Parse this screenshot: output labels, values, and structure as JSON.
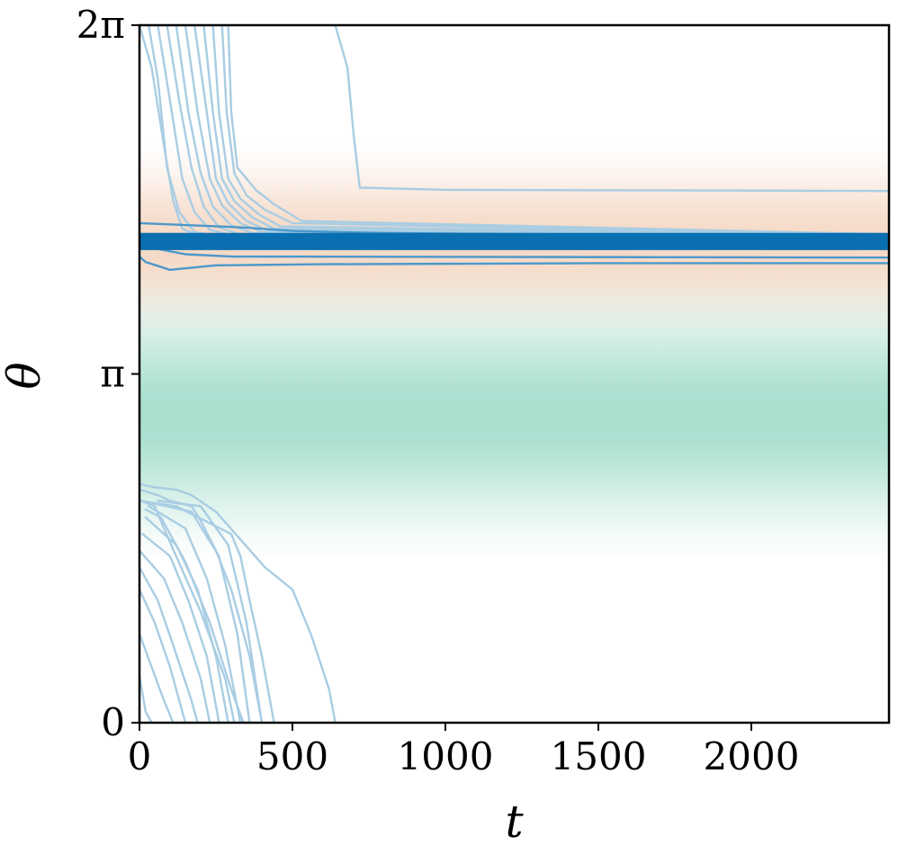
{
  "chart_data": {
    "type": "line",
    "title": "",
    "xlabel": "t",
    "ylabel": "θ",
    "xlim": [
      0,
      2450
    ],
    "ylim": [
      0,
      6.2832
    ],
    "grid": false,
    "legend": "none",
    "x_ticks": [
      {
        "value": 0,
        "label": "0"
      },
      {
        "value": 500,
        "label": "500"
      },
      {
        "value": 1000,
        "label": "1000"
      },
      {
        "value": 1500,
        "label": "1500"
      },
      {
        "value": 2000,
        "label": "2000"
      }
    ],
    "y_ticks": [
      {
        "value": 0,
        "label": "0"
      },
      {
        "value": 3.1416,
        "label": "π"
      },
      {
        "value": 6.2832,
        "label": "2π"
      }
    ],
    "background_bands": [
      {
        "name": "attracting band (orange)",
        "center": 4.3,
        "halfwidth": 1.0,
        "color": "#f5d9c6"
      },
      {
        "name": "repelling band (green)",
        "center": 2.76,
        "halfwidth": 1.4,
        "color": "#a9dfcf"
      }
    ],
    "colors": {
      "dark": "#0a6fb0",
      "mid": "#4b98cb",
      "light": "#a9cde3"
    },
    "series": [
      {
        "color": "dark",
        "points": [
          [
            0,
            4.27
          ],
          [
            2450,
            4.27
          ]
        ]
      },
      {
        "color": "dark",
        "points": [
          [
            0,
            4.29
          ],
          [
            2450,
            4.29
          ]
        ]
      },
      {
        "color": "dark",
        "points": [
          [
            0,
            4.31
          ],
          [
            2450,
            4.31
          ]
        ]
      },
      {
        "color": "dark",
        "points": [
          [
            0,
            4.33
          ],
          [
            2450,
            4.33
          ]
        ]
      },
      {
        "color": "dark",
        "points": [
          [
            0,
            4.35
          ],
          [
            2450,
            4.35
          ]
        ]
      },
      {
        "color": "dark",
        "points": [
          [
            0,
            4.37
          ],
          [
            2450,
            4.37
          ]
        ]
      },
      {
        "color": "dark",
        "points": [
          [
            0,
            4.39
          ],
          [
            2450,
            4.39
          ]
        ]
      },
      {
        "color": "dark",
        "points": [
          [
            0,
            4.4
          ],
          [
            2450,
            4.4
          ]
        ]
      },
      {
        "color": "mid",
        "points": [
          [
            0,
            4.5
          ],
          [
            350,
            4.46
          ],
          [
            500,
            4.43
          ],
          [
            800,
            4.41
          ],
          [
            2450,
            4.38
          ]
        ]
      },
      {
        "color": "mid",
        "points": [
          [
            0,
            4.2
          ],
          [
            20,
            4.15
          ],
          [
            100,
            4.08
          ],
          [
            250,
            4.12
          ],
          [
            600,
            4.13
          ],
          [
            1500,
            4.14
          ],
          [
            2450,
            4.14
          ]
        ]
      },
      {
        "color": "mid",
        "points": [
          [
            0,
            4.3
          ],
          [
            150,
            4.22
          ],
          [
            300,
            4.2
          ],
          [
            2450,
            4.19
          ]
        ]
      },
      {
        "color": "light",
        "points": [
          [
            0,
            6.2832
          ],
          [
            40,
            5.9
          ],
          [
            80,
            5.2
          ],
          [
            110,
            4.7
          ],
          [
            140,
            4.45
          ],
          [
            200,
            4.38
          ],
          [
            2450,
            4.37
          ]
        ]
      },
      {
        "color": "light",
        "points": [
          [
            30,
            6.2832
          ],
          [
            60,
            5.8
          ],
          [
            90,
            5.0
          ],
          [
            130,
            4.6
          ],
          [
            180,
            4.42
          ],
          [
            260,
            4.38
          ],
          [
            2450,
            4.37
          ]
        ]
      },
      {
        "color": "light",
        "points": [
          [
            60,
            6.2832
          ],
          [
            100,
            5.6
          ],
          [
            140,
            4.9
          ],
          [
            180,
            4.6
          ],
          [
            230,
            4.44
          ],
          [
            300,
            4.39
          ],
          [
            2450,
            4.37
          ]
        ]
      },
      {
        "color": "light",
        "points": [
          [
            90,
            6.2832
          ],
          [
            130,
            5.6
          ],
          [
            170,
            5.0
          ],
          [
            210,
            4.65
          ],
          [
            260,
            4.46
          ],
          [
            330,
            4.4
          ],
          [
            2450,
            4.37
          ]
        ]
      },
      {
        "color": "light",
        "points": [
          [
            120,
            6.2832
          ],
          [
            160,
            5.5
          ],
          [
            200,
            4.95
          ],
          [
            240,
            4.65
          ],
          [
            300,
            4.48
          ],
          [
            370,
            4.41
          ],
          [
            2450,
            4.38
          ]
        ]
      },
      {
        "color": "light",
        "points": [
          [
            150,
            6.2832
          ],
          [
            190,
            5.5
          ],
          [
            230,
            4.9
          ],
          [
            270,
            4.66
          ],
          [
            330,
            4.5
          ],
          [
            400,
            4.42
          ],
          [
            2450,
            4.38
          ]
        ]
      },
      {
        "color": "light",
        "points": [
          [
            180,
            6.2832
          ],
          [
            220,
            5.5
          ],
          [
            250,
            4.9
          ],
          [
            290,
            4.68
          ],
          [
            350,
            4.52
          ],
          [
            420,
            4.43
          ],
          [
            2450,
            4.38
          ]
        ]
      },
      {
        "color": "light",
        "points": [
          [
            210,
            6.2832
          ],
          [
            240,
            5.5
          ],
          [
            270,
            4.9
          ],
          [
            310,
            4.7
          ],
          [
            370,
            4.55
          ],
          [
            440,
            4.45
          ],
          [
            2450,
            4.39
          ]
        ]
      },
      {
        "color": "light",
        "points": [
          [
            240,
            6.2832
          ],
          [
            260,
            5.5
          ],
          [
            290,
            4.9
          ],
          [
            330,
            4.72
          ],
          [
            390,
            4.58
          ],
          [
            460,
            4.47
          ],
          [
            2450,
            4.39
          ]
        ]
      },
      {
        "color": "light",
        "points": [
          [
            270,
            6.2832
          ],
          [
            285,
            5.5
          ],
          [
            310,
            4.95
          ],
          [
            350,
            4.75
          ],
          [
            410,
            4.62
          ],
          [
            500,
            4.5
          ],
          [
            2450,
            4.39
          ]
        ]
      },
      {
        "color": "light",
        "points": [
          [
            290,
            6.2832
          ],
          [
            300,
            5.5
          ],
          [
            320,
            5.0
          ],
          [
            380,
            4.8
          ],
          [
            440,
            4.67
          ],
          [
            530,
            4.52
          ],
          [
            2450,
            4.4
          ]
        ]
      },
      {
        "color": "light",
        "points": [
          [
            640,
            6.2832
          ],
          [
            680,
            5.9
          ],
          [
            700,
            5.3
          ],
          [
            720,
            4.82
          ],
          [
            1000,
            4.8
          ],
          [
            2450,
            4.79
          ]
        ]
      },
      {
        "color": "light",
        "points": [
          [
            0,
            0.42
          ],
          [
            20,
            0.1
          ],
          [
            40,
            0
          ]
        ]
      },
      {
        "color": "light",
        "points": [
          [
            0,
            0.8
          ],
          [
            40,
            0.5
          ],
          [
            80,
            0.2
          ],
          [
            110,
            0
          ]
        ]
      },
      {
        "color": "light",
        "points": [
          [
            0,
            1.2
          ],
          [
            50,
            0.9
          ],
          [
            100,
            0.5
          ],
          [
            150,
            0
          ]
        ]
      },
      {
        "color": "light",
        "points": [
          [
            0,
            1.4
          ],
          [
            60,
            1.1
          ],
          [
            110,
            0.7
          ],
          [
            170,
            0.2
          ],
          [
            190,
            0
          ]
        ]
      },
      {
        "color": "light",
        "points": [
          [
            0,
            1.55
          ],
          [
            80,
            1.3
          ],
          [
            140,
            0.9
          ],
          [
            200,
            0.4
          ],
          [
            230,
            0
          ]
        ]
      },
      {
        "color": "light",
        "points": [
          [
            10,
            1.7
          ],
          [
            100,
            1.5
          ],
          [
            160,
            1.1
          ],
          [
            220,
            0.6
          ],
          [
            260,
            0
          ]
        ]
      },
      {
        "color": "light",
        "points": [
          [
            20,
            1.85
          ],
          [
            120,
            1.6
          ],
          [
            190,
            1.2
          ],
          [
            250,
            0.6
          ],
          [
            290,
            0
          ]
        ]
      },
      {
        "color": "light",
        "points": [
          [
            30,
            1.95
          ],
          [
            150,
            1.75
          ],
          [
            220,
            1.3
          ],
          [
            280,
            0.7
          ],
          [
            330,
            0
          ]
        ]
      },
      {
        "color": "light",
        "points": [
          [
            40,
            1.98
          ],
          [
            170,
            1.9
          ],
          [
            260,
            1.5
          ],
          [
            320,
            0.8
          ],
          [
            360,
            0
          ]
        ]
      },
      {
        "color": "light",
        "points": [
          [
            60,
            2.0
          ],
          [
            200,
            1.95
          ],
          [
            290,
            1.6
          ],
          [
            350,
            0.9
          ],
          [
            400,
            0
          ]
        ]
      },
      {
        "color": "light",
        "points": [
          [
            5,
            2.0
          ],
          [
            50,
            1.95
          ],
          [
            80,
            1.75
          ],
          [
            120,
            1.5
          ],
          [
            200,
            1.0
          ],
          [
            280,
            0.4
          ],
          [
            310,
            0
          ]
        ]
      },
      {
        "color": "light",
        "points": [
          [
            20,
            1.92
          ],
          [
            70,
            1.85
          ],
          [
            150,
            1.45
          ],
          [
            230,
            0.9
          ],
          [
            300,
            0.3
          ],
          [
            340,
            0
          ]
        ]
      },
      {
        "color": "light",
        "points": [
          [
            0,
            2.1
          ],
          [
            60,
            2.05
          ],
          [
            100,
            2.0
          ],
          [
            170,
            1.95
          ],
          [
            200,
            1.82
          ],
          [
            250,
            1.55
          ],
          [
            300,
            1.2
          ],
          [
            360,
            0.6
          ],
          [
            400,
            0
          ]
        ]
      },
      {
        "color": "light",
        "points": [
          [
            0,
            2.0
          ],
          [
            120,
            1.95
          ],
          [
            300,
            1.7
          ],
          [
            330,
            1.5
          ],
          [
            360,
            1.1
          ],
          [
            400,
            0.6
          ],
          [
            440,
            0
          ]
        ]
      },
      {
        "color": "light",
        "points": [
          [
            0,
            2.15
          ],
          [
            50,
            2.12
          ],
          [
            120,
            2.1
          ],
          [
            170,
            2.05
          ],
          [
            250,
            1.9
          ],
          [
            410,
            1.4
          ],
          [
            500,
            1.2
          ],
          [
            560,
            0.8
          ],
          [
            620,
            0.3
          ],
          [
            640,
            0
          ]
        ]
      }
    ]
  }
}
